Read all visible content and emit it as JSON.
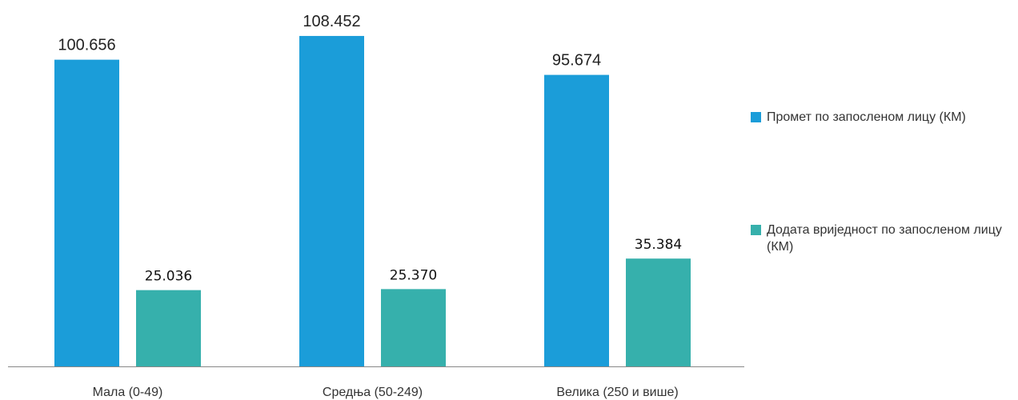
{
  "chart_data": {
    "type": "bar",
    "categories": [
      "Мала (0-49)",
      "Средња (50-249)",
      "Велика (250 и више)"
    ],
    "series": [
      {
        "name": "Промет по запосленом лицу (КМ)",
        "values": [
          100.656,
          108.452,
          95.674
        ],
        "labels": [
          "100.656",
          "108.452",
          "95.674"
        ],
        "color": "#1b9dd9"
      },
      {
        "name": "Додата вриједност по запосленом лицу (КМ)",
        "values": [
          25.036,
          25.37,
          35.384
        ],
        "labels": [
          "25.036",
          "25.370",
          "35.384"
        ],
        "color": "#36b0ac"
      }
    ],
    "ylim": [
      0,
      115
    ],
    "grid": false,
    "legend_position": "right"
  }
}
